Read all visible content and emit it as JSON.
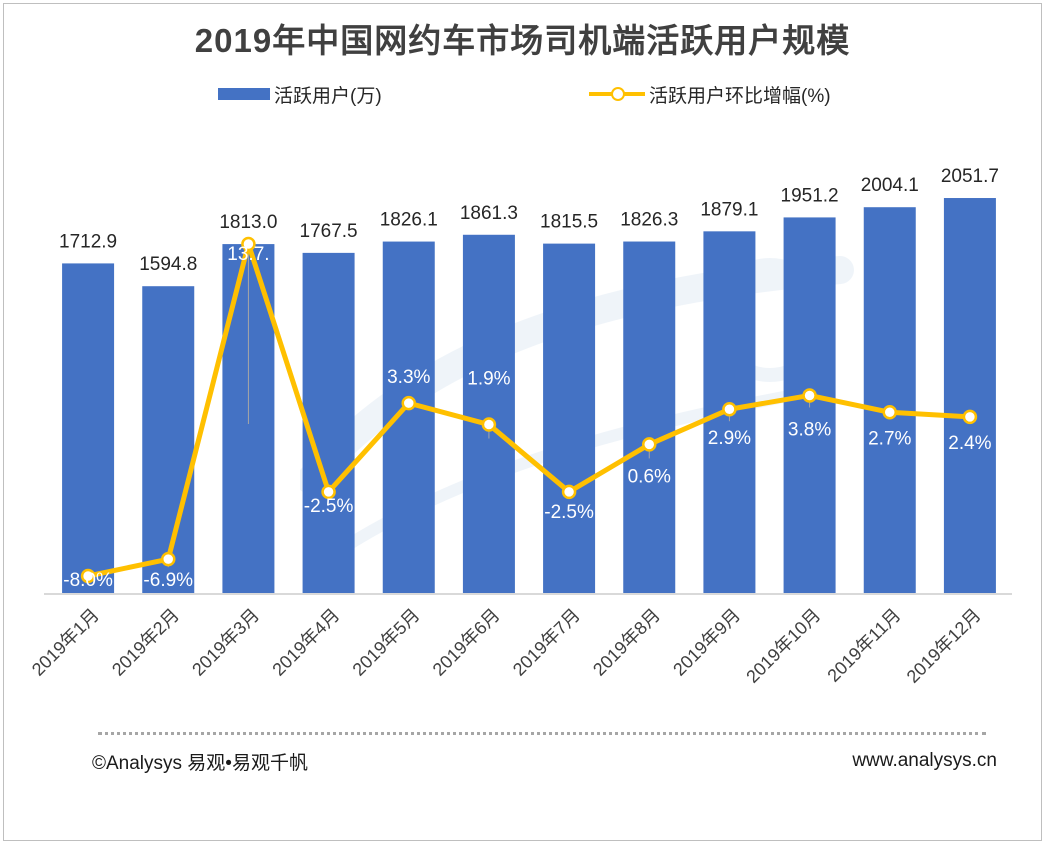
{
  "title": "2019年中国网约车市场司机端活跃用户规模",
  "legend": {
    "bar_label": "活跃用户(万)",
    "line_label": "活跃用户环比增幅(%)"
  },
  "colors": {
    "bar": "#4472c4",
    "line": "#ffc000"
  },
  "chart_data": {
    "type": "bar",
    "categories": [
      "2019年1月",
      "2019年2月",
      "2019年3月",
      "2019年4月",
      "2019年5月",
      "2019年6月",
      "2019年7月",
      "2019年8月",
      "2019年9月",
      "2019年10月",
      "2019年11月",
      "2019年12月"
    ],
    "series": [
      {
        "name": "活跃用户(万)",
        "type": "bar",
        "values": [
          1712.9,
          1594.8,
          1813.0,
          1767.5,
          1826.1,
          1861.3,
          1815.5,
          1826.3,
          1879.1,
          1951.2,
          2004.1,
          2051.7
        ],
        "labels": [
          "1712.9",
          "1594.8",
          "1813.0",
          "1767.5",
          "1826.1",
          "1861.3",
          "1815.5",
          "1826.3",
          "1879.1",
          "1951.2",
          "2004.1",
          "2051.7"
        ]
      },
      {
        "name": "活跃用户环比增幅(%)",
        "type": "line",
        "values": [
          -8.0,
          -6.9,
          13.7,
          -2.5,
          3.3,
          1.9,
          -2.5,
          0.6,
          2.9,
          3.8,
          2.7,
          2.4
        ],
        "labels": [
          "-8.0%",
          "-6.9%",
          "13.7.",
          "-2.5%",
          "3.3%",
          "1.9%",
          "-2.5%",
          "0.6%",
          "2.9%",
          "3.8%",
          "2.7%",
          "2.4%"
        ]
      }
    ],
    "y_primary_range": [
      0,
      2300
    ],
    "y_secondary_range": [
      -10,
      14
    ],
    "grid": false,
    "legend_position": "top"
  },
  "watermark": {
    "brand": "易观",
    "slogan": "你要的数据分析"
  },
  "footer": {
    "left": "©Analysys 易观•易观千帆",
    "right": "www.analysys.cn"
  }
}
